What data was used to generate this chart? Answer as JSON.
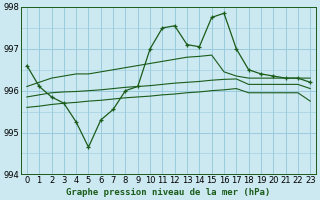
{
  "title": "Graphe pression niveau de la mer (hPa)",
  "bg_color": "#cce8f0",
  "grid_color": "#99ccdd",
  "line_color": "#1a5c1a",
  "x_labels": [
    "0",
    "1",
    "2",
    "3",
    "4",
    "5",
    "6",
    "7",
    "8",
    "9",
    "10",
    "11",
    "12",
    "13",
    "14",
    "15",
    "16",
    "17",
    "18",
    "19",
    "20",
    "21",
    "22",
    "23"
  ],
  "x_values": [
    0,
    1,
    2,
    3,
    4,
    5,
    6,
    7,
    8,
    9,
    10,
    11,
    12,
    13,
    14,
    15,
    16,
    17,
    18,
    19,
    20,
    21,
    22,
    23
  ],
  "series_main": [
    996.6,
    996.1,
    995.85,
    995.7,
    995.25,
    994.65,
    995.3,
    995.55,
    996.0,
    996.1,
    997.0,
    997.5,
    997.55,
    997.1,
    997.05,
    997.75,
    997.85,
    997.0,
    996.5,
    996.4,
    996.35,
    996.3,
    996.3,
    996.2
  ],
  "series_max": [
    996.1,
    996.2,
    996.3,
    996.35,
    996.4,
    996.4,
    996.45,
    996.5,
    996.55,
    996.6,
    996.65,
    996.7,
    996.75,
    996.8,
    996.82,
    996.85,
    996.45,
    996.35,
    996.3,
    996.3,
    996.3,
    996.3,
    996.3,
    996.3
  ],
  "series_avg": [
    995.85,
    995.9,
    995.95,
    995.97,
    995.98,
    996.0,
    996.02,
    996.05,
    996.08,
    996.1,
    996.12,
    996.15,
    996.18,
    996.2,
    996.22,
    996.25,
    996.27,
    996.28,
    996.15,
    996.15,
    996.15,
    996.15,
    996.15,
    996.05
  ],
  "series_min": [
    995.6,
    995.63,
    995.67,
    995.7,
    995.72,
    995.75,
    995.77,
    995.8,
    995.83,
    995.85,
    995.87,
    995.9,
    995.92,
    995.95,
    995.97,
    996.0,
    996.02,
    996.05,
    995.95,
    995.95,
    995.95,
    995.95,
    995.95,
    995.75
  ],
  "ylim": [
    994.0,
    998.0
  ],
  "yticks": [
    994,
    995,
    996,
    997,
    998
  ],
  "tick_fontsize": 6,
  "title_fontsize": 6.5
}
